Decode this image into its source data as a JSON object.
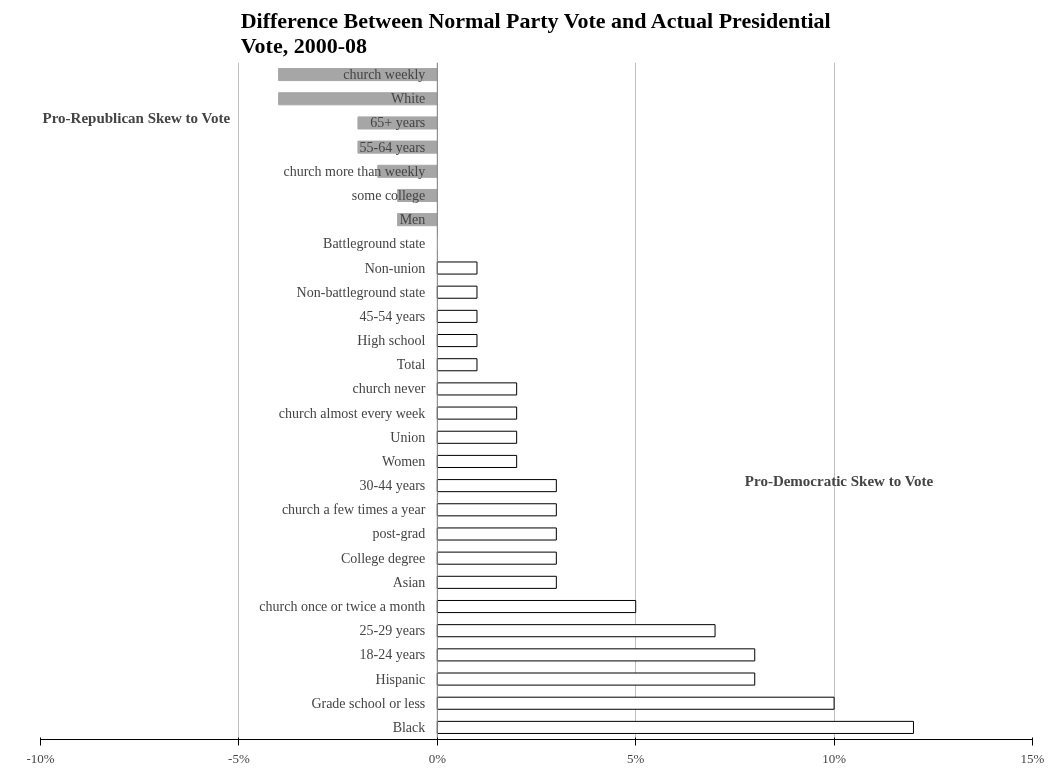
{
  "chart_data": {
    "type": "bar",
    "orientation": "horizontal",
    "title": "Difference Between Normal Party Vote and Actual Presidential Vote, 2000-08",
    "categories": [
      "church weekly",
      "White",
      "65+ years",
      "55-64 years",
      "church more than weekly",
      "some college",
      "Men",
      "Battleground state",
      "Non-union",
      "Non-battleground state",
      "45-54 years",
      "High school",
      "Total",
      "church never",
      "church almost every week",
      "Union",
      "Women",
      "30-44 years",
      "church a few times a year",
      "post-grad",
      "College degree",
      "Asian",
      "church once or twice a month",
      "25-29 years",
      "18-24 years",
      "Hispanic",
      "Grade school or less",
      "Black"
    ],
    "values": [
      -4,
      -4,
      -2,
      -2,
      -1.5,
      -1,
      -1,
      0,
      1,
      1,
      1,
      1,
      1,
      2,
      2,
      2,
      2,
      3,
      3,
      3,
      3,
      3,
      5,
      7,
      8,
      8,
      10,
      12
    ],
    "colors": [
      "#a6a6a6",
      "#a6a6a6",
      "#a6a6a6",
      "#a6a6a6",
      "#a6a6a6",
      "#a6a6a6",
      "#a6a6a6",
      "#ffffff",
      "#ffffff",
      "#ffffff",
      "#ffffff",
      "#ffffff",
      "#ffffff",
      "#ffffff",
      "#ffffff",
      "#ffffff",
      "#ffffff",
      "#ffffff",
      "#ffffff",
      "#ffffff",
      "#ffffff",
      "#ffffff",
      "#ffffff",
      "#ffffff",
      "#ffffff",
      "#ffffff",
      "#ffffff",
      "#ffffff"
    ],
    "xlim": [
      -10,
      15
    ],
    "xticks": [
      {
        "value": -10,
        "label": "-10%"
      },
      {
        "value": -5,
        "label": "-5%"
      },
      {
        "value": 0,
        "label": "0%"
      },
      {
        "value": 5,
        "label": "5%"
      },
      {
        "value": 10,
        "label": "10%"
      },
      {
        "value": 15,
        "label": "15%"
      }
    ],
    "grid": "x",
    "annotations": [
      "Pro-Republican Skew to Vote",
      "Pro-Democratic Skew to Vote"
    ]
  }
}
